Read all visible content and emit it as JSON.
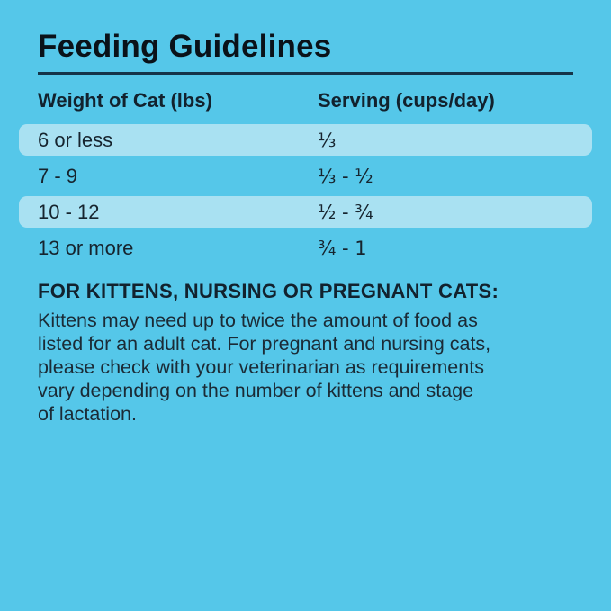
{
  "title": "Feeding Guidelines",
  "colors": {
    "background": "#55C7E9",
    "row_highlight": "#A9E1F2",
    "text_dark": "#16242E",
    "divider": "#153449"
  },
  "table": {
    "headers": [
      "Weight of Cat (lbs)",
      "Serving (cups/day)"
    ],
    "rows": [
      {
        "weight": "6 or less",
        "serving": "⅓",
        "highlighted": true
      },
      {
        "weight": "7 - 9",
        "serving": "⅓ - ½",
        "highlighted": false
      },
      {
        "weight": "10 - 12",
        "serving": "½ - ¾",
        "highlighted": true
      },
      {
        "weight": "13 or more",
        "serving": "¾ - 1",
        "highlighted": false
      }
    ]
  },
  "note": {
    "heading": "FOR KITTENS, NURSING OR PREGNANT CATS:",
    "body": "Kittens may need up to twice the amount of food as\nlisted for an adult cat. For pregnant and nursing cats,\nplease check with your veterinarian as requirements\nvary depending on the number of kittens and stage\nof lactation."
  }
}
